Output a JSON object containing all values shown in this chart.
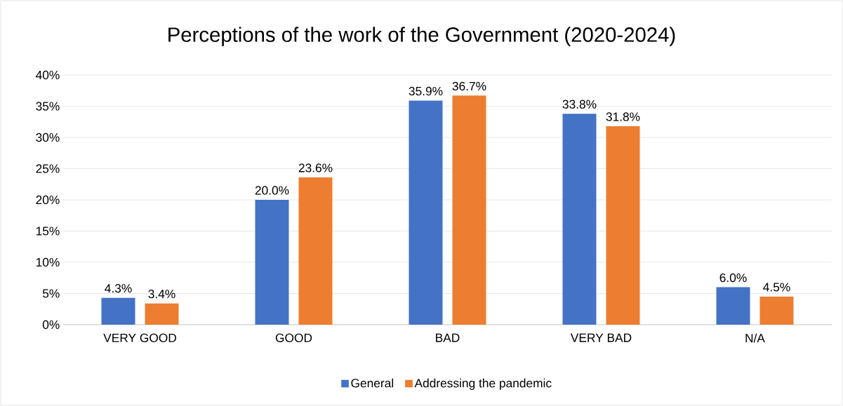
{
  "chart_data": {
    "type": "bar",
    "title": "Perceptions of the work of the Government (2020-2024)",
    "categories": [
      "VERY GOOD",
      "GOOD",
      "BAD",
      "VERY BAD",
      "N/A"
    ],
    "series": [
      {
        "name": "General",
        "color": "#4472c4",
        "values": [
          4.3,
          20.0,
          35.9,
          33.8,
          6.0
        ],
        "value_labels": [
          "4.3%",
          "20.0%",
          "35.9%",
          "33.8%",
          "6.0%"
        ]
      },
      {
        "name": "Addressing the pandemic",
        "color": "#ed7d31",
        "values": [
          3.4,
          23.6,
          36.7,
          31.8,
          4.5
        ],
        "value_labels": [
          "3.4%",
          "23.6%",
          "36.7%",
          "31.8%",
          "4.5%"
        ]
      }
    ],
    "ylim": [
      0,
      40
    ],
    "yticks": [
      {
        "value": 0,
        "label": "0%"
      },
      {
        "value": 5,
        "label": "5%"
      },
      {
        "value": 10,
        "label": "10%"
      },
      {
        "value": 15,
        "label": "15%"
      },
      {
        "value": 20,
        "label": "20%"
      },
      {
        "value": 25,
        "label": "25%"
      },
      {
        "value": 30,
        "label": "30%"
      },
      {
        "value": 35,
        "label": "35%"
      },
      {
        "value": 40,
        "label": "40%"
      }
    ],
    "grid": "y",
    "legend": "bottom"
  }
}
